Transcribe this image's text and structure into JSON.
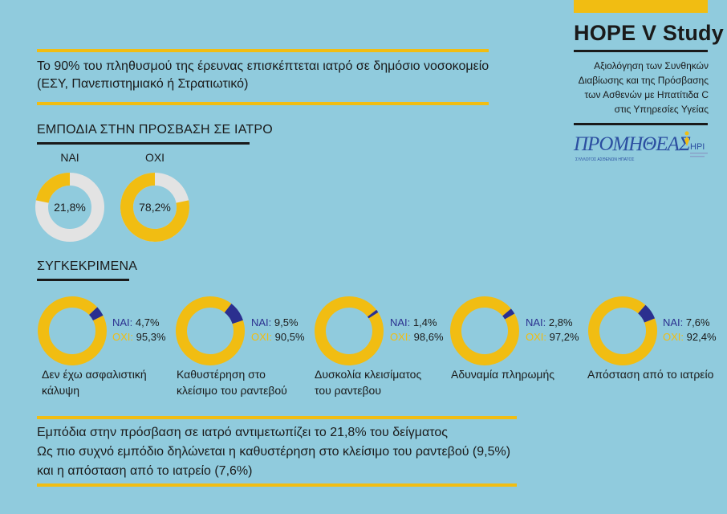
{
  "header": {
    "title": "HOPE V Study",
    "subtitle": "Αξιολόγηση των Συνθηκών Διαβίωσης και της Πρόσβασης των Ασθενών με Ηπατίτιδα C στις Υπηρεσίες Υγείας",
    "logo_left_text": "ΠΡΟΜΗΘΕΑΣ",
    "logo_left_subtext": "ΣΥΛΛΟΓΟΣ ΑΣΘΕΝΩΝ ΗΠΑΤΟΣ",
    "logo_right_text": "HPI"
  },
  "intro": {
    "text": "Το 90% του πληθυσμού της έρευνας επισκέπτεται ιατρό σε δημόσιο νοσοκομείο (ΕΣΥ, Πανεπιστημιακό ή Στρατιωτικό)"
  },
  "sections": {
    "barriers_title": "ΕΜΠΟΔΙΑ ΣΤΗΝ ΠΡΟΣΒΑΣΗ ΣΕ ΙΑΤΡΟ",
    "specific_title": "ΣΥΓΚΕΚΡΙΜΕΝΑ"
  },
  "colors": {
    "background": "#90cbdd",
    "yellow": "#f1bd12",
    "navy": "#2b2f8f",
    "gray": "#e3e3e3",
    "dark": "#1a1a1a"
  },
  "chart_data": [
    {
      "type": "pie",
      "title": "ΕΜΠΟΔΙΑ ΣΤΗΝ ΠΡΟΣΒΑΣΗ ΣΕ ΙΑΤΡΟ",
      "donuts": [
        {
          "label": "ΝΑΙ",
          "value": 21.8,
          "value_text": "21,8%"
        },
        {
          "label": "ΟΧΙ",
          "value": 78.2,
          "value_text": "78,2%"
        }
      ]
    },
    {
      "type": "pie",
      "title": "ΣΥΓΚΕΚΡΙΜΕΝΑ",
      "nai_label": "ΝΑΙ:",
      "oxi_label": "ΟΧΙ:",
      "donuts": [
        {
          "category": "Δεν έχω ασφαλιστική κάλυψη",
          "nai": 4.7,
          "oxi": 95.3,
          "nai_text": "4,7%",
          "oxi_text": "95,3%"
        },
        {
          "category": "Καθυστέρηση στο κλείσιμο του ραντεβού",
          "nai": 9.5,
          "oxi": 90.5,
          "nai_text": "9,5%",
          "oxi_text": "90,5%"
        },
        {
          "category": "Δυσκολία κλεισίματος του ραντεβου",
          "nai": 1.4,
          "oxi": 98.6,
          "nai_text": "1,4%",
          "oxi_text": "98,6%"
        },
        {
          "category": "Αδυναμία πληρωμής",
          "nai": 2.8,
          "oxi": 97.2,
          "nai_text": "2,8%",
          "oxi_text": "97,2%"
        },
        {
          "category": "Απόσταση από το ιατρείο",
          "nai": 7.6,
          "oxi": 92.4,
          "nai_text": "7,6%",
          "oxi_text": "92,4%"
        }
      ]
    }
  ],
  "conclusion": {
    "line1": "Εμπόδια στην πρόσβαση σε ιατρό αντιμετωπίζει το 21,8% του δείγματος",
    "line2": "Ως πιο συχνό εμπόδιο δηλώνεται η καθυστέρηση στο κλείσιμο του ραντεβού (9,5%)",
    "line3": "και η απόσταση από το ιατρείο (7,6%)"
  }
}
